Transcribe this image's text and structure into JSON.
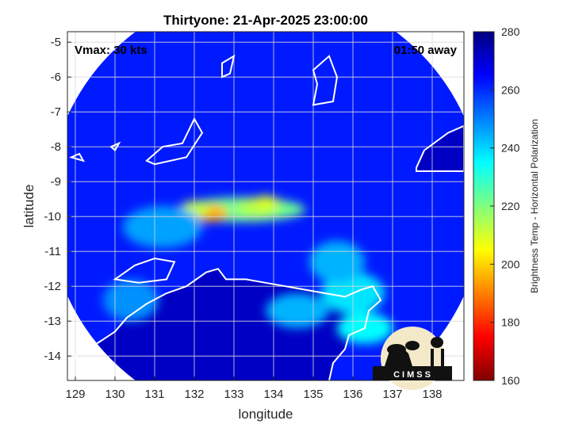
{
  "chart_data": {
    "type": "heatmap",
    "title": "Thirtyone: 21-Apr-2025 23:00:00",
    "xlabel": "longitude",
    "ylabel": "latitude",
    "xlim": [
      128.8,
      138.8
    ],
    "ylim": [
      -14.7,
      -4.7
    ],
    "x_ticks": [
      129,
      130,
      131,
      132,
      133,
      134,
      135,
      136,
      137,
      138
    ],
    "x_tick_labels": [
      "129",
      "130",
      "131",
      "132",
      "133",
      "134",
      "135",
      "136",
      "137",
      "138"
    ],
    "y_ticks": [
      -5,
      -6,
      -7,
      -8,
      -9,
      -10,
      -11,
      -12,
      -13,
      -14
    ],
    "y_tick_labels": [
      "-5",
      "-6",
      "-7",
      "-8",
      "-9",
      "-10",
      "-11",
      "-12",
      "-13",
      "-14"
    ],
    "grid": true,
    "annotations": {
      "top_left": "Vmax: 30 kts",
      "top_right": "01:50 away"
    },
    "swath": {
      "center_lon": 133.8,
      "center_lat": -9.7,
      "radius_deg": 5.6,
      "background_temp": 262
    },
    "features": [
      {
        "lon": 133.2,
        "lat": -9.8,
        "sx": 1.6,
        "sy": 0.35,
        "temp": 222
      },
      {
        "lon": 132.4,
        "lat": -9.9,
        "sx": 0.45,
        "sy": 0.25,
        "temp": 196
      },
      {
        "lon": 132.0,
        "lat": -9.8,
        "sx": 0.35,
        "sy": 0.25,
        "temp": 212
      },
      {
        "lon": 133.6,
        "lat": -9.75,
        "sx": 0.55,
        "sy": 0.25,
        "temp": 214
      },
      {
        "lon": 133.8,
        "lat": -9.6,
        "sx": 0.35,
        "sy": 0.2,
        "temp": 210
      },
      {
        "lon": 136.0,
        "lat": -12.2,
        "sx": 0.8,
        "sy": 0.6,
        "temp": 238
      },
      {
        "lon": 136.3,
        "lat": -13.2,
        "sx": 0.7,
        "sy": 0.45,
        "temp": 235
      },
      {
        "lon": 135.6,
        "lat": -11.3,
        "sx": 0.7,
        "sy": 0.6,
        "temp": 244
      },
      {
        "lon": 131.2,
        "lat": -10.3,
        "sx": 1.0,
        "sy": 0.6,
        "temp": 246
      },
      {
        "lon": 130.4,
        "lat": -12.4,
        "sx": 0.7,
        "sy": 0.6,
        "temp": 248
      },
      {
        "lon": 134.6,
        "lat": -12.7,
        "sx": 0.8,
        "sy": 0.5,
        "temp": 244
      }
    ],
    "land_temp": 272,
    "colorbar": {
      "label": "Brightness Temp - Horizontal Polarization",
      "range": [
        160,
        280
      ],
      "ticks": [
        280,
        260,
        240,
        220,
        200,
        180,
        160
      ],
      "tick_labels": [
        "280",
        "260",
        "240",
        "220",
        "200",
        "180",
        "160"
      ],
      "colormap": "jet"
    },
    "logo": "CIMSS"
  }
}
